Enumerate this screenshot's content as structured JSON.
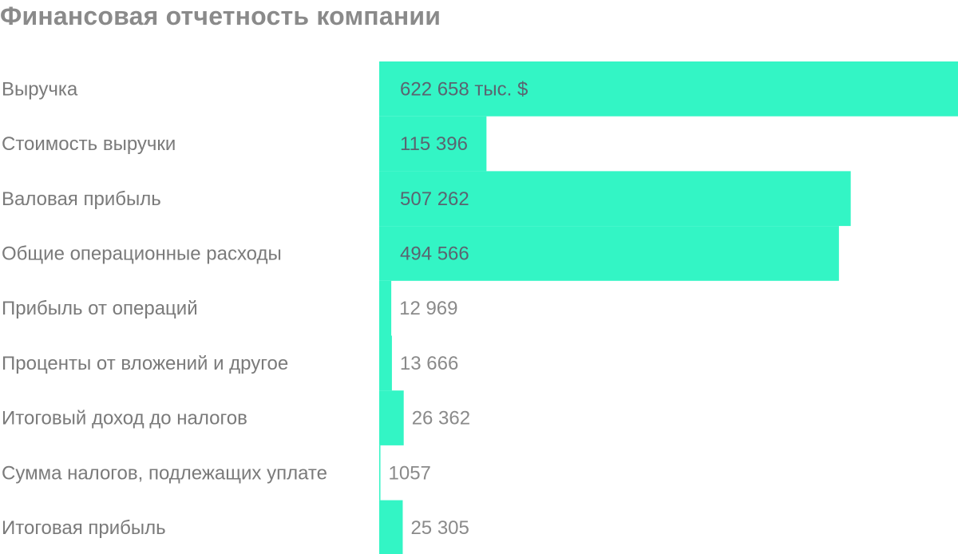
{
  "chart_data": {
    "type": "bar",
    "orientation": "horizontal",
    "title": "Финансовая отчетность компании",
    "categories": [
      "Выручка",
      "Стоимость выручки",
      "Валовая прибыль",
      "Общие операционные расходы",
      "Прибыль от операций",
      "Проценты от вложений и другое",
      "Итоговый доход до налогов",
      "Сумма налогов, подлежащих уплате",
      "Итоговая прибыль"
    ],
    "values": [
      622658,
      115396,
      507262,
      494566,
      12969,
      13666,
      26362,
      1057,
      25305
    ],
    "value_labels": [
      "622 658 тыс. $",
      "115 396",
      "507 262",
      "494 566",
      "12 969",
      "13 666",
      "26 362",
      "1057",
      "25 305"
    ],
    "colors": {
      "bar": "#33f5c5",
      "label_on_bar": "#5a6470",
      "label_off_bar": "#8a8a8a"
    }
  }
}
